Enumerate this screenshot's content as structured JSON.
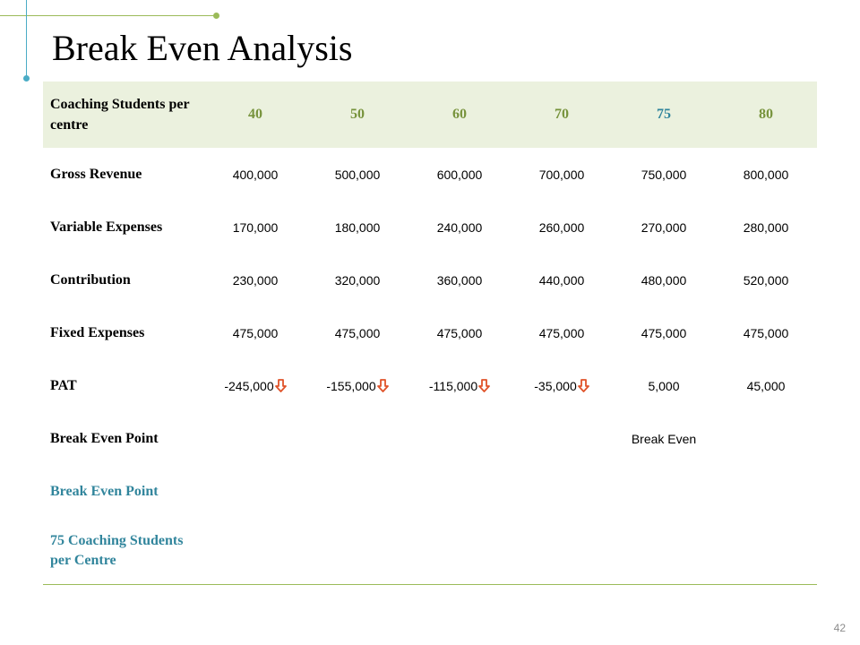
{
  "title": "Break Even Analysis",
  "page_number": "42",
  "colors": {
    "accent_green": "#9bbb59",
    "accent_teal": "#4bacc6",
    "header_fill": "#ebf1de",
    "negative": "#e0532a",
    "positive": "#31859c"
  },
  "table": {
    "header_label": "Coaching Students per centre",
    "columns": [
      "40",
      "50",
      "60",
      "70",
      "75",
      "80"
    ],
    "rows": [
      {
        "label": "Gross Revenue",
        "values": [
          "400,000",
          "500,000",
          "600,000",
          "700,000",
          "750,000",
          "800,000"
        ]
      },
      {
        "label": "Variable Expenses",
        "values": [
          "170,000",
          "180,000",
          "240,000",
          "260,000",
          "270,000",
          "280,000"
        ]
      },
      {
        "label": "Contribution",
        "values": [
          "230,000",
          "320,000",
          "360,000",
          "440,000",
          "480,000",
          "520,000"
        ]
      },
      {
        "label": "Fixed Expenses",
        "values": [
          "475,000",
          "475,000",
          "475,000",
          "475,000",
          "475,000",
          "475,000"
        ]
      },
      {
        "label": "PAT",
        "values": [
          "-245,000",
          "-155,000",
          "-115,000",
          "-35,000",
          "5,000",
          "45,000"
        ]
      },
      {
        "label": "Break Even Point",
        "values": [
          "",
          "",
          "",
          "",
          "Break Even",
          ""
        ]
      },
      {
        "label": "Break Even Point",
        "values": [
          "",
          "",
          "",
          "",
          "",
          ""
        ]
      },
      {
        "label": "75 Coaching Students per Centre",
        "values": [
          "",
          "",
          "",
          "",
          "",
          ""
        ]
      }
    ],
    "down_arrow_icon": "down-arrow-icon"
  }
}
